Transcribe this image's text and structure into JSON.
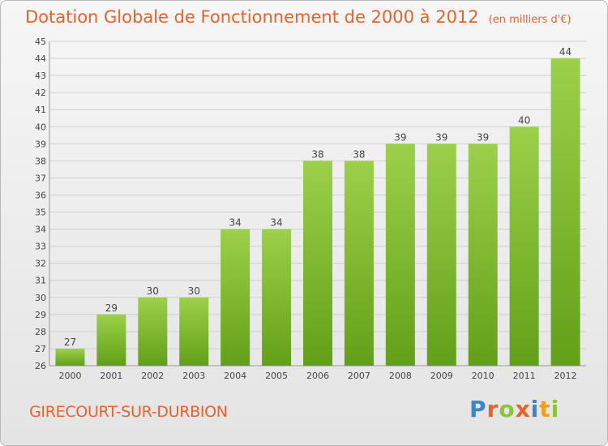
{
  "title": "Dotation Globale de Fonctionnement de 2000 à 2012",
  "unit": "(en milliers d'€)",
  "commune": "GIRECOURT-SUR-DURBION",
  "logo": {
    "text": "Proxiti",
    "letters": [
      {
        "ch": "P",
        "color": "#3a88c8"
      },
      {
        "ch": "r",
        "color": "#e8632b"
      },
      {
        "ch": "o",
        "color": "#8cc43c"
      },
      {
        "ch": "x",
        "color": "#e8632b"
      },
      {
        "ch": "i",
        "color": "#3a88c8"
      },
      {
        "ch": "t",
        "color": "#f0a020"
      },
      {
        "ch": "i",
        "color": "#8cc43c"
      }
    ]
  },
  "colors": {
    "bar_top": "#9dd04a",
    "bar_bottom": "#62a018",
    "grid": "#cfcfcf",
    "text": "#444444",
    "accent": "#e8632b"
  },
  "chart_data": {
    "type": "bar",
    "categories": [
      "2000",
      "2001",
      "2002",
      "2003",
      "2004",
      "2005",
      "2006",
      "2007",
      "2008",
      "2009",
      "2010",
      "2011",
      "2012"
    ],
    "values": [
      27,
      29,
      30,
      30,
      34,
      34,
      38,
      38,
      39,
      39,
      39,
      40,
      44
    ],
    "data_labels": [
      "27",
      "29",
      "30",
      "30",
      "34",
      "34",
      "38",
      "38",
      "39",
      "39",
      "39",
      "40",
      "44"
    ],
    "ylim": [
      26,
      45
    ],
    "yticks": [
      26,
      27,
      28,
      29,
      30,
      31,
      32,
      33,
      34,
      35,
      36,
      37,
      38,
      39,
      40,
      41,
      42,
      43,
      44,
      45
    ],
    "grid": true,
    "xlabel": "",
    "ylabel": ""
  }
}
